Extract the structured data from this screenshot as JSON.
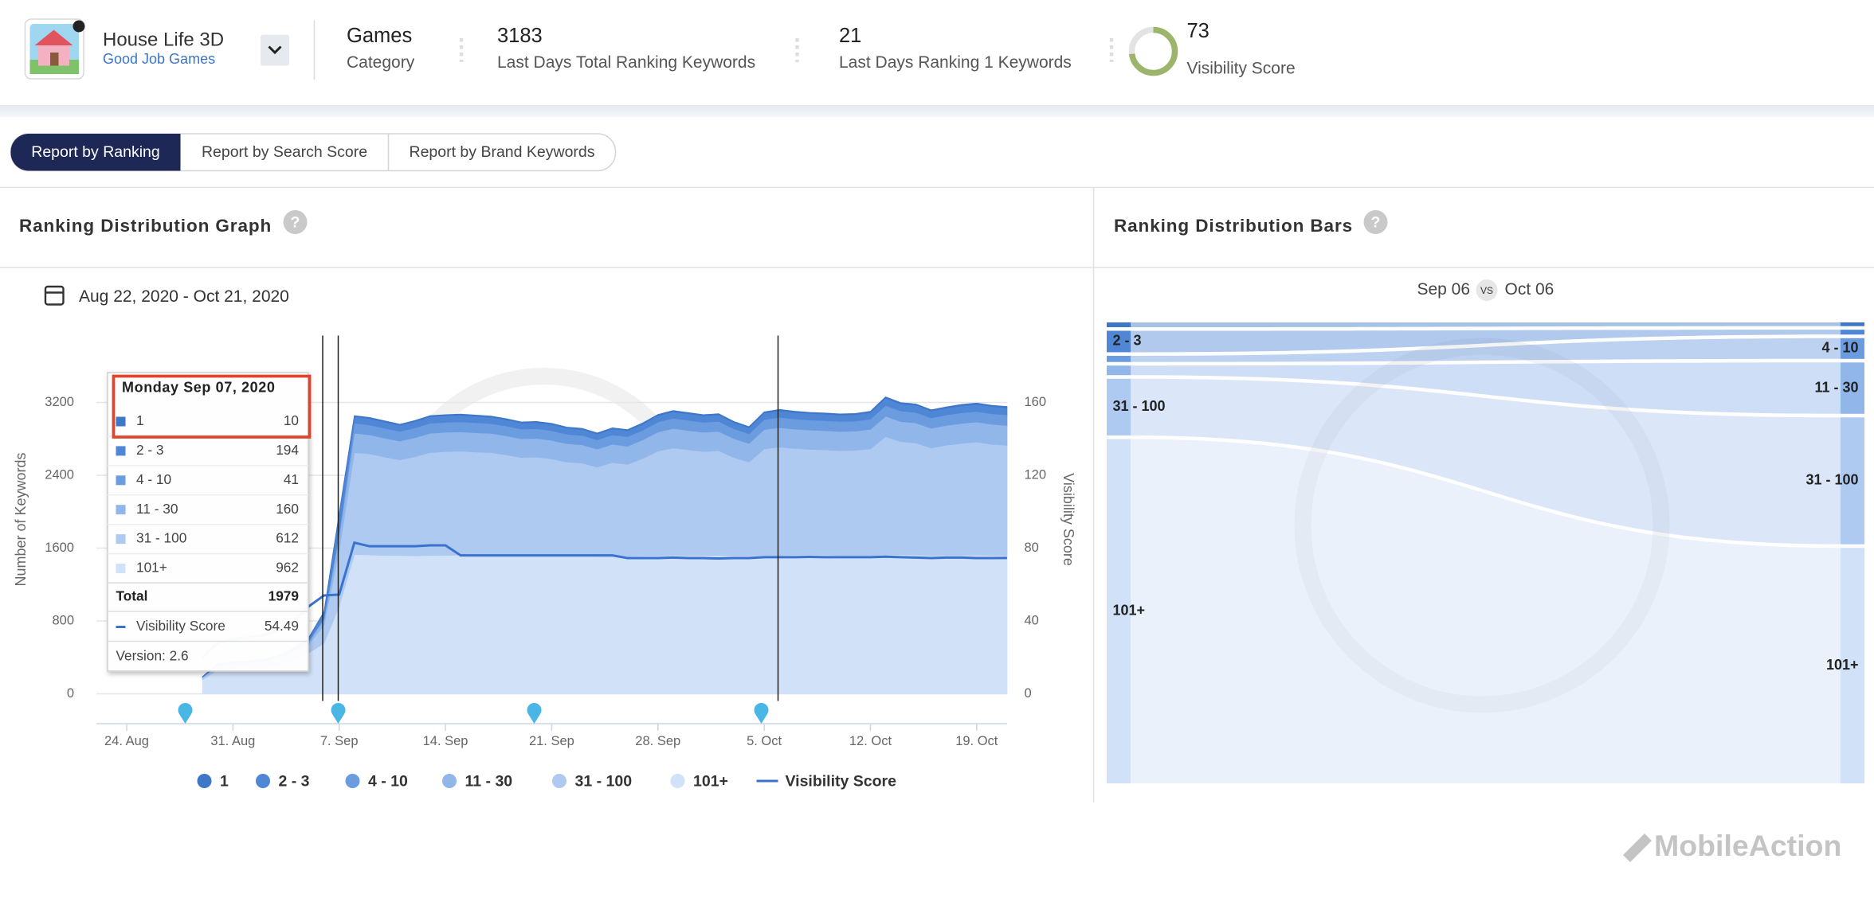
{
  "header": {
    "app_name": "House Life 3D",
    "developer": "Good Job Games",
    "category": "Games",
    "category_label": "Category",
    "total_keywords": 3183,
    "total_keywords_label": "Last Days Total Ranking Keywords",
    "rank1_keywords": 21,
    "rank1_keywords_label": "Last Days Ranking 1 Keywords",
    "visibility_score": 73,
    "visibility_score_label": "Visibility Score"
  },
  "tabs": [
    "Report by Ranking",
    "Report by Search Score",
    "Report by Brand Keywords"
  ],
  "watermark": "MobileAction",
  "chart_data": [
    {
      "type": "area",
      "stacked": true,
      "title": "Ranking Distribution Graph",
      "date_range": "Aug 22, 2020 - Oct 21, 2020",
      "ylabel": "Number of Keywords",
      "y2label": "Visibility Score",
      "categories": [
        null,
        null,
        "24. Aug",
        null,
        null,
        null,
        null,
        null,
        null,
        "31. Aug",
        null,
        null,
        null,
        null,
        null,
        null,
        "7. Sep",
        null,
        null,
        null,
        null,
        null,
        null,
        "14. Sep",
        null,
        null,
        null,
        null,
        null,
        null,
        "21. Sep",
        null,
        null,
        null,
        null,
        null,
        null,
        "28. Sep",
        null,
        null,
        null,
        null,
        null,
        null,
        "5. Oct",
        null,
        null,
        null,
        null,
        null,
        null,
        "12. Oct",
        null,
        null,
        null,
        null,
        null,
        null,
        "19. Oct",
        null,
        null
      ],
      "series": [
        {
          "name": "1",
          "color": "#3f77c8",
          "values": [
            null,
            null,
            null,
            null,
            null,
            null,
            null,
            1,
            2,
            2,
            2,
            3,
            3,
            4,
            5,
            6,
            10,
            10,
            11,
            11,
            10,
            10,
            11,
            11,
            12,
            11,
            11,
            10,
            10,
            10,
            11,
            11,
            10,
            10,
            10,
            11,
            11,
            12,
            12,
            11,
            11,
            11,
            10,
            10,
            11,
            12,
            12,
            11,
            11,
            11,
            11,
            12,
            14,
            13,
            13,
            12,
            12,
            13,
            13,
            13,
            12
          ]
        },
        {
          "name": "2 - 3",
          "color": "#4f87d6",
          "values": [
            null,
            null,
            null,
            null,
            null,
            null,
            null,
            5,
            10,
            12,
            12,
            14,
            16,
            22,
            30,
            60,
            194,
            72,
            70,
            70,
            68,
            70,
            72,
            72,
            72,
            72,
            70,
            70,
            68,
            68,
            68,
            66,
            66,
            64,
            66,
            66,
            68,
            70,
            72,
            72,
            72,
            72,
            70,
            68,
            72,
            74,
            72,
            72,
            72,
            72,
            72,
            74,
            80,
            78,
            78,
            76,
            76,
            78,
            78,
            78,
            78
          ]
        },
        {
          "name": "4 - 10",
          "color": "#6c9ce0",
          "values": [
            null,
            null,
            null,
            null,
            null,
            null,
            null,
            2,
            5,
            5,
            5,
            6,
            7,
            9,
            12,
            20,
            41,
            110,
            108,
            108,
            106,
            108,
            110,
            110,
            110,
            110,
            108,
            108,
            106,
            106,
            106,
            104,
            104,
            102,
            104,
            104,
            106,
            110,
            112,
            112,
            110,
            110,
            108,
            106,
            110,
            112,
            112,
            110,
            110,
            110,
            110,
            112,
            118,
            116,
            116,
            114,
            114,
            116,
            116,
            116,
            116
          ]
        },
        {
          "name": "11 - 30",
          "color": "#90b6ea",
          "values": [
            null,
            null,
            null,
            null,
            null,
            null,
            null,
            5,
            10,
            11,
            12,
            13,
            15,
            20,
            28,
            60,
            160,
            212,
            210,
            208,
            206,
            208,
            212,
            212,
            212,
            212,
            210,
            208,
            206,
            206,
            204,
            202,
            200,
            198,
            200,
            200,
            204,
            210,
            214,
            212,
            212,
            212,
            208,
            204,
            212,
            214,
            212,
            212,
            210,
            210,
            210,
            214,
            224,
            220,
            220,
            216,
            218,
            220,
            220,
            220,
            218
          ]
        },
        {
          "name": "31 - 100",
          "color": "#afcaf0",
          "values": [
            null,
            null,
            null,
            null,
            null,
            null,
            null,
            20,
            40,
            45,
            48,
            52,
            60,
            75,
            95,
            200,
            612,
            1120,
            1110,
            1080,
            1050,
            1090,
            1130,
            1140,
            1140,
            1135,
            1130,
            1110,
            1080,
            1080,
            1060,
            1030,
            1020,
            980,
            1030,
            1010,
            1070,
            1150,
            1180,
            1160,
            1140,
            1150,
            1080,
            1030,
            1170,
            1190,
            1170,
            1160,
            1155,
            1150,
            1155,
            1170,
            1300,
            1240,
            1230,
            1180,
            1210,
            1230,
            1240,
            1220,
            1210
          ]
        },
        {
          "name": "101+",
          "color": "#d1e1f7",
          "values": [
            null,
            null,
            null,
            null,
            null,
            null,
            null,
            157,
            263,
            275,
            281,
            292,
            319,
            370,
            450,
            554,
            962,
            1530,
            1525,
            1520,
            1520,
            1515,
            1520,
            1520,
            1525,
            1520,
            1520,
            1515,
            1515,
            1520,
            1520,
            1515,
            1515,
            1510,
            1510,
            1510,
            1515,
            1515,
            1520,
            1520,
            1520,
            1520,
            1515,
            1515,
            1520,
            1520,
            1525,
            1525,
            1525,
            1520,
            1520,
            1520,
            1525,
            1530,
            1525,
            1520,
            1520,
            1520,
            1525,
            1520,
            1520
          ]
        },
        {
          "name": "Visibility Score",
          "type": "line",
          "axis": "y2",
          "color": "#3a73cf",
          "values": [
            null,
            null,
            null,
            null,
            null,
            null,
            null,
            20,
            28,
            30,
            31,
            32,
            35,
            40,
            48,
            54,
            54.49,
            83,
            81,
            81,
            81,
            81,
            81.5,
            81.5,
            76,
            76,
            76,
            76,
            76,
            76,
            76,
            76,
            76,
            76,
            76,
            74.5,
            74.5,
            74.5,
            74.8,
            74.5,
            74.5,
            74.3,
            74.5,
            74.5,
            75,
            75,
            75,
            75.2,
            75,
            75,
            75,
            75,
            75.3,
            75,
            74.8,
            74.5,
            74.8,
            74.8,
            74.5,
            74.5,
            74.6
          ]
        }
      ],
      "ylim": [
        -328,
        3934
      ],
      "yticks": [
        0,
        800,
        1600,
        2400,
        3200
      ],
      "y2lim": [
        -16.4,
        196.7
      ],
      "y2ticks": [
        0,
        40,
        80,
        120,
        160
      ],
      "grid": true,
      "tooltip": {
        "date": "Monday Sep 07, 2020",
        "index": 16,
        "total_label": "Total",
        "total": 1979,
        "version": "Version: 2.6"
      }
    },
    {
      "type": "sankey",
      "title": "Ranking Distribution Bars",
      "left_date": "Sep 06",
      "vs": "VS",
      "right_date": "Oct 06",
      "left_nodes": {
        "labels": [
          null,
          "2 - 3",
          null,
          null,
          "31 - 100",
          "101+"
        ],
        "values": [
          10,
          45,
          13,
          20,
          119,
          722
        ]
      },
      "right_nodes": {
        "labels": [
          null,
          null,
          "4 - 10",
          "11 - 30",
          "31 - 100",
          "101+"
        ],
        "values": [
          26,
          34,
          145,
          359,
          888,
          1648
        ]
      }
    }
  ]
}
